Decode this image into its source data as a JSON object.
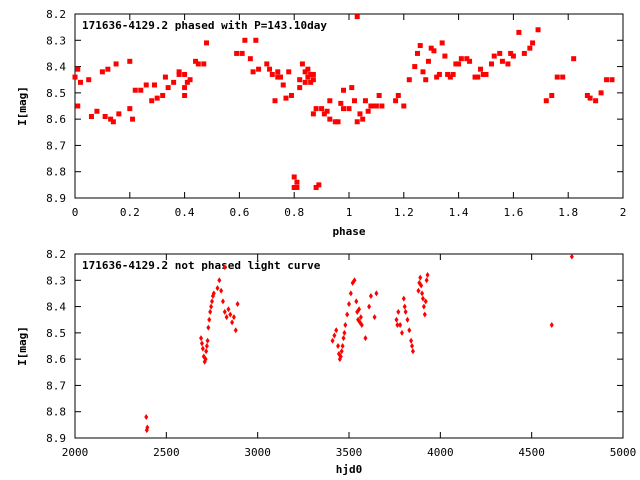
{
  "chart_data": [
    {
      "type": "scatter",
      "title": "171636-4129.2 phased with P=143.10day",
      "xlabel": "phase",
      "ylabel": "I[mag]",
      "xlim": [
        0,
        2
      ],
      "ylim": [
        8.9,
        8.2
      ],
      "y_reversed": true,
      "grid": false,
      "marker": "square",
      "color": "#ff0000",
      "xticks": [
        "0",
        "0.2",
        "0.4",
        "0.6",
        "0.8",
        "1",
        "1.2",
        "1.4",
        "1.6",
        "1.8",
        "2"
      ],
      "yticks": [
        "8.2",
        "8.3",
        "8.4",
        "8.5",
        "8.6",
        "8.7",
        "8.8",
        "8.9"
      ],
      "points": [
        [
          0.0,
          8.44
        ],
        [
          0.01,
          8.41
        ],
        [
          0.01,
          8.55
        ],
        [
          0.02,
          8.46
        ],
        [
          0.05,
          8.45
        ],
        [
          0.06,
          8.59
        ],
        [
          0.08,
          8.57
        ],
        [
          0.1,
          8.42
        ],
        [
          0.11,
          8.59
        ],
        [
          0.12,
          8.41
        ],
        [
          0.13,
          8.6
        ],
        [
          0.14,
          8.61
        ],
        [
          0.15,
          8.39
        ],
        [
          0.16,
          8.58
        ],
        [
          0.2,
          8.56
        ],
        [
          0.2,
          8.38
        ],
        [
          0.21,
          8.6
        ],
        [
          0.22,
          8.49
        ],
        [
          0.24,
          8.49
        ],
        [
          0.26,
          8.47
        ],
        [
          0.28,
          8.53
        ],
        [
          0.29,
          8.47
        ],
        [
          0.3,
          8.52
        ],
        [
          0.32,
          8.51
        ],
        [
          0.33,
          8.44
        ],
        [
          0.34,
          8.48
        ],
        [
          0.36,
          8.46
        ],
        [
          0.38,
          8.43
        ],
        [
          0.38,
          8.42
        ],
        [
          0.4,
          8.43
        ],
        [
          0.4,
          8.48
        ],
        [
          0.4,
          8.51
        ],
        [
          0.41,
          8.46
        ],
        [
          0.42,
          8.45
        ],
        [
          0.44,
          8.38
        ],
        [
          0.45,
          8.39
        ],
        [
          0.47,
          8.39
        ],
        [
          0.48,
          8.31
        ],
        [
          0.59,
          8.35
        ],
        [
          0.61,
          8.35
        ],
        [
          0.62,
          8.3
        ],
        [
          0.64,
          8.37
        ],
        [
          0.65,
          8.42
        ],
        [
          0.66,
          8.3
        ],
        [
          0.67,
          8.41
        ],
        [
          0.7,
          8.39
        ],
        [
          0.71,
          8.41
        ],
        [
          0.72,
          8.43
        ],
        [
          0.73,
          8.53
        ],
        [
          0.74,
          8.42
        ],
        [
          0.74,
          8.44
        ],
        [
          0.75,
          8.44
        ],
        [
          0.76,
          8.47
        ],
        [
          0.77,
          8.52
        ],
        [
          0.78,
          8.42
        ],
        [
          0.79,
          8.51
        ],
        [
          0.8,
          8.82
        ],
        [
          0.8,
          8.86
        ],
        [
          0.81,
          8.84
        ],
        [
          0.81,
          8.86
        ],
        [
          0.82,
          8.45
        ],
        [
          0.82,
          8.48
        ],
        [
          0.83,
          8.39
        ],
        [
          0.84,
          8.42
        ],
        [
          0.84,
          8.46
        ],
        [
          0.85,
          8.41
        ],
        [
          0.85,
          8.44
        ],
        [
          0.86,
          8.43
        ],
        [
          0.86,
          8.46
        ],
        [
          0.87,
          8.58
        ],
        [
          0.87,
          8.45
        ],
        [
          0.87,
          8.43
        ],
        [
          0.88,
          8.56
        ],
        [
          0.88,
          8.86
        ],
        [
          0.89,
          8.85
        ],
        [
          0.9,
          8.56
        ],
        [
          0.91,
          8.58
        ],
        [
          0.92,
          8.57
        ],
        [
          0.93,
          8.6
        ],
        [
          0.93,
          8.53
        ],
        [
          0.95,
          8.61
        ],
        [
          0.96,
          8.61
        ],
        [
          0.97,
          8.54
        ],
        [
          0.98,
          8.56
        ],
        [
          0.98,
          8.49
        ],
        [
          1.0,
          8.56
        ],
        [
          1.01,
          8.48
        ],
        [
          1.02,
          8.53
        ],
        [
          1.03,
          8.61
        ],
        [
          1.03,
          8.21
        ],
        [
          1.04,
          8.58
        ],
        [
          1.05,
          8.6
        ],
        [
          1.06,
          8.53
        ],
        [
          1.07,
          8.57
        ],
        [
          1.08,
          8.55
        ],
        [
          1.09,
          8.55
        ],
        [
          1.1,
          8.55
        ],
        [
          1.11,
          8.51
        ],
        [
          1.12,
          8.55
        ],
        [
          1.17,
          8.53
        ],
        [
          1.18,
          8.51
        ],
        [
          1.2,
          8.55
        ],
        [
          1.22,
          8.45
        ],
        [
          1.24,
          8.4
        ],
        [
          1.25,
          8.35
        ],
        [
          1.26,
          8.32
        ],
        [
          1.27,
          8.42
        ],
        [
          1.28,
          8.45
        ],
        [
          1.29,
          8.38
        ],
        [
          1.3,
          8.33
        ],
        [
          1.31,
          8.34
        ],
        [
          1.32,
          8.44
        ],
        [
          1.33,
          8.43
        ],
        [
          1.34,
          8.31
        ],
        [
          1.35,
          8.36
        ],
        [
          1.36,
          8.43
        ],
        [
          1.37,
          8.44
        ],
        [
          1.38,
          8.43
        ],
        [
          1.39,
          8.39
        ],
        [
          1.4,
          8.39
        ],
        [
          1.41,
          8.37
        ],
        [
          1.43,
          8.37
        ],
        [
          1.44,
          8.38
        ],
        [
          1.46,
          8.44
        ],
        [
          1.47,
          8.44
        ],
        [
          1.48,
          8.41
        ],
        [
          1.49,
          8.43
        ],
        [
          1.5,
          8.43
        ],
        [
          1.52,
          8.39
        ],
        [
          1.53,
          8.36
        ],
        [
          1.55,
          8.35
        ],
        [
          1.56,
          8.38
        ],
        [
          1.58,
          8.39
        ],
        [
          1.59,
          8.35
        ],
        [
          1.6,
          8.36
        ],
        [
          1.62,
          8.27
        ],
        [
          1.64,
          8.35
        ],
        [
          1.66,
          8.33
        ],
        [
          1.67,
          8.31
        ],
        [
          1.69,
          8.26
        ],
        [
          1.72,
          8.53
        ],
        [
          1.74,
          8.51
        ],
        [
          1.76,
          8.44
        ],
        [
          1.78,
          8.44
        ],
        [
          1.82,
          8.37
        ],
        [
          1.87,
          8.51
        ],
        [
          1.88,
          8.52
        ],
        [
          1.9,
          8.53
        ],
        [
          1.92,
          8.5
        ],
        [
          1.94,
          8.45
        ],
        [
          1.96,
          8.45
        ]
      ]
    },
    {
      "type": "scatter",
      "title": "171636-4129.2 not phased light curve",
      "xlabel": "hjd0",
      "ylabel": "I[mag]",
      "xlim": [
        2000,
        5000
      ],
      "ylim": [
        8.9,
        8.2
      ],
      "y_reversed": true,
      "grid": false,
      "marker": "diamond",
      "color": "#ff0000",
      "xticks": [
        "2000",
        "2500",
        "3000",
        "3500",
        "4000",
        "4500",
        "5000"
      ],
      "yticks": [
        "8.2",
        "8.3",
        "8.4",
        "8.5",
        "8.6",
        "8.7",
        "8.8",
        "8.9"
      ],
      "points": [
        [
          2390,
          8.82
        ],
        [
          2393,
          8.87
        ],
        [
          2396,
          8.86
        ],
        [
          2690,
          8.52
        ],
        [
          2695,
          8.54
        ],
        [
          2700,
          8.56
        ],
        [
          2705,
          8.59
        ],
        [
          2710,
          8.61
        ],
        [
          2715,
          8.6
        ],
        [
          2718,
          8.57
        ],
        [
          2722,
          8.55
        ],
        [
          2726,
          8.53
        ],
        [
          2730,
          8.48
        ],
        [
          2735,
          8.45
        ],
        [
          2740,
          8.42
        ],
        [
          2745,
          8.4
        ],
        [
          2750,
          8.38
        ],
        [
          2755,
          8.36
        ],
        [
          2760,
          8.35
        ],
        [
          2780,
          8.33
        ],
        [
          2790,
          8.3
        ],
        [
          2800,
          8.34
        ],
        [
          2810,
          8.38
        ],
        [
          2820,
          8.42
        ],
        [
          2830,
          8.44
        ],
        [
          2840,
          8.41
        ],
        [
          2850,
          8.43
        ],
        [
          2860,
          8.46
        ],
        [
          2870,
          8.44
        ],
        [
          2880,
          8.49
        ],
        [
          2890,
          8.39
        ],
        [
          2820,
          8.25
        ],
        [
          3410,
          8.53
        ],
        [
          3420,
          8.51
        ],
        [
          3430,
          8.49
        ],
        [
          3440,
          8.55
        ],
        [
          3445,
          8.58
        ],
        [
          3450,
          8.6
        ],
        [
          3455,
          8.59
        ],
        [
          3460,
          8.57
        ],
        [
          3465,
          8.55
        ],
        [
          3470,
          8.52
        ],
        [
          3475,
          8.5
        ],
        [
          3480,
          8.47
        ],
        [
          3490,
          8.43
        ],
        [
          3500,
          8.39
        ],
        [
          3510,
          8.35
        ],
        [
          3520,
          8.31
        ],
        [
          3530,
          8.3
        ],
        [
          3540,
          8.38
        ],
        [
          3545,
          8.42
        ],
        [
          3550,
          8.45
        ],
        [
          3555,
          8.41
        ],
        [
          3560,
          8.46
        ],
        [
          3565,
          8.44
        ],
        [
          3570,
          8.47
        ],
        [
          3590,
          8.52
        ],
        [
          3610,
          8.4
        ],
        [
          3620,
          8.36
        ],
        [
          3640,
          8.44
        ],
        [
          3650,
          8.35
        ],
        [
          3760,
          8.45
        ],
        [
          3765,
          8.47
        ],
        [
          3770,
          8.42
        ],
        [
          3780,
          8.47
        ],
        [
          3790,
          8.5
        ],
        [
          3800,
          8.37
        ],
        [
          3805,
          8.4
        ],
        [
          3810,
          8.42
        ],
        [
          3820,
          8.45
        ],
        [
          3830,
          8.49
        ],
        [
          3840,
          8.53
        ],
        [
          3845,
          8.55
        ],
        [
          3850,
          8.57
        ],
        [
          3880,
          8.34
        ],
        [
          3885,
          8.31
        ],
        [
          3890,
          8.29
        ],
        [
          3895,
          8.32
        ],
        [
          3900,
          8.35
        ],
        [
          3905,
          8.37
        ],
        [
          3910,
          8.4
        ],
        [
          3915,
          8.43
        ],
        [
          3920,
          8.38
        ],
        [
          3925,
          8.3
        ],
        [
          3930,
          8.28
        ],
        [
          4610,
          8.47
        ],
        [
          4720,
          8.21
        ]
      ]
    }
  ]
}
